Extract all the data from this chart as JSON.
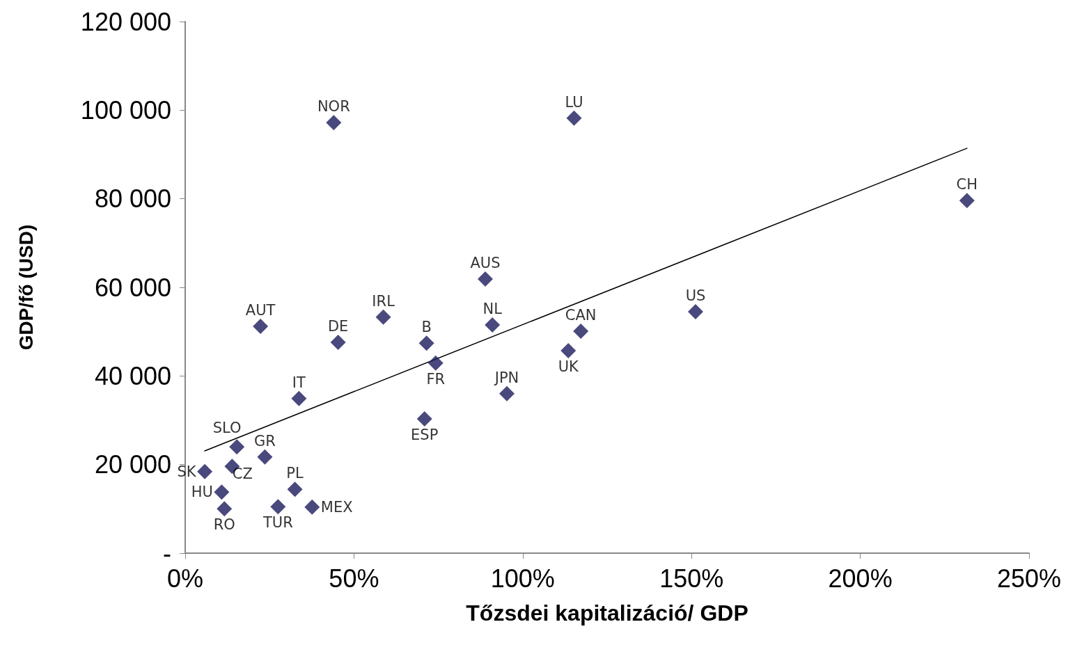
{
  "chart_data": {
    "type": "scatter",
    "xlabel": "Tőzsdei kapitalizáció/ GDP",
    "ylabel": "GDP/fő (USD)",
    "xlim": [
      0,
      250
    ],
    "xticks": [
      {
        "value": 0,
        "label": "0%"
      },
      {
        "value": 50,
        "label": "50%"
      },
      {
        "value": 100,
        "label": "100%"
      },
      {
        "value": 150,
        "label": "150%"
      },
      {
        "value": 200,
        "label": "200%"
      },
      {
        "value": 250,
        "label": "250%"
      }
    ],
    "ylim": [
      0,
      120000
    ],
    "yticks": [
      {
        "value": 0,
        "label": "-"
      },
      {
        "value": 20000,
        "label": "20 000"
      },
      {
        "value": 40000,
        "label": "40 000"
      },
      {
        "value": 60000,
        "label": "60 000"
      },
      {
        "value": 80000,
        "label": "80 000"
      },
      {
        "value": 100000,
        "label": "100 000"
      },
      {
        "value": 120000,
        "label": "120 000"
      }
    ],
    "series": [
      {
        "color": "#1c1c5c",
        "marker": "diamond",
        "x": [
          44,
          115.2,
          231.6,
          88.9,
          22.3,
          58.7,
          45.3,
          71.5,
          74.2,
          91,
          151.2,
          117.2,
          113.5,
          95.3,
          33.7,
          70.9,
          15.3,
          23.6,
          13.9,
          5.8,
          10.8,
          11.6,
          27.5,
          32.5,
          37.6
        ],
        "values": [
          97200,
          98200,
          79600,
          61900,
          51200,
          53300,
          47600,
          47400,
          42900,
          51500,
          54500,
          50100,
          45700,
          36000,
          34900,
          30300,
          24000,
          21700,
          19600,
          18400,
          13800,
          10000,
          10500,
          14400,
          10400
        ]
      },
      {
        "type": "line",
        "color": "#000000",
        "marker": "none",
        "x": [
          5.8,
          231.6
        ],
        "values": [
          23100,
          91400
        ]
      }
    ],
    "annotations": [
      {
        "text": "NOR",
        "x": 44,
        "y": 97200
      },
      {
        "text": "LU",
        "x": 115.2,
        "y": 98200
      },
      {
        "text": "CH",
        "x": 231.6,
        "y": 79600
      },
      {
        "text": "AUS",
        "x": 88.9,
        "y": 61900
      },
      {
        "text": "AUT",
        "x": 22.3,
        "y": 51200
      },
      {
        "text": "IRL",
        "x": 58.7,
        "y": 53300
      },
      {
        "text": "DE",
        "x": 45.3,
        "y": 47600
      },
      {
        "text": "B",
        "x": 71.5,
        "y": 47400
      },
      {
        "text": "FR",
        "x": 74.2,
        "y": 42900
      },
      {
        "text": "NL",
        "x": 91,
        "y": 51500
      },
      {
        "text": "US",
        "x": 151.2,
        "y": 54500
      },
      {
        "text": "CAN",
        "x": 117.2,
        "y": 50100
      },
      {
        "text": "UK",
        "x": 113.5,
        "y": 45700
      },
      {
        "text": "JPN",
        "x": 95.3,
        "y": 36000
      },
      {
        "text": "IT",
        "x": 33.7,
        "y": 34900
      },
      {
        "text": "ESP",
        "x": 70.9,
        "y": 30300
      },
      {
        "text": "SLO",
        "x": 15.3,
        "y": 24000
      },
      {
        "text": "GR",
        "x": 23.6,
        "y": 21700
      },
      {
        "text": "CZ",
        "x": 13.9,
        "y": 19600
      },
      {
        "text": "SK",
        "x": 5.8,
        "y": 18400
      },
      {
        "text": "HU",
        "x": 10.8,
        "y": 13800
      },
      {
        "text": "RO",
        "x": 11.6,
        "y": 10000
      },
      {
        "text": "TUR",
        "x": 27.5,
        "y": 10500
      },
      {
        "text": "PL",
        "x": 32.5,
        "y": 14400
      },
      {
        "text": "MEX",
        "x": 37.6,
        "y": 10400
      }
    ],
    "grid": false,
    "line_style": "solid"
  }
}
